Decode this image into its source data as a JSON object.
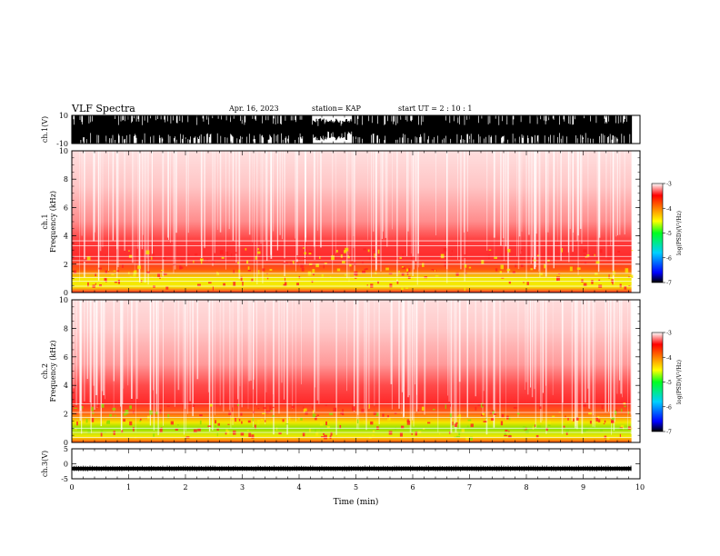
{
  "header": {
    "title": "VLF Spectra",
    "date": "Apr. 16, 2023",
    "station": "station= KAP",
    "start": "start  UT  =   2 : 10 : 1"
  },
  "chart_data": [
    {
      "type": "line",
      "name": "waveform-ch1",
      "ylabel": "ch.1(V)",
      "ylim": [
        -10,
        10
      ],
      "yticks": [
        10,
        -10
      ],
      "xlim": [
        0,
        10
      ],
      "description_level": "noise envelope mostly spanning -10 to 10 V with a quieter interval near 4-5 min"
    },
    {
      "type": "heatmap",
      "name": "spectrogram-ch1",
      "ylabel": "ch.1",
      "ylabel2": "Frequency  (kHz)",
      "ylim": [
        0,
        10
      ],
      "yticks": [
        0,
        2,
        4,
        6,
        8,
        10
      ],
      "xlim": [
        0,
        10
      ],
      "data_end_min": 9.85,
      "colorbar": {
        "label": "log(PSD)(V²/Hz)",
        "range": [
          -7,
          -3
        ],
        "ticks": [
          -3,
          -4,
          -5,
          -6,
          -7
        ]
      }
    },
    {
      "type": "heatmap",
      "name": "spectrogram-ch2",
      "ylabel": "ch.2",
      "ylabel2": "Frequency  (kHz)",
      "ylim": [
        0,
        10
      ],
      "yticks": [
        0,
        2,
        4,
        6,
        8,
        10
      ],
      "xlim": [
        0,
        10
      ],
      "data_end_min": 9.85,
      "colorbar": {
        "label": "log(PSD)(V²/Hz)",
        "range": [
          -7,
          -3
        ],
        "ticks": [
          -3,
          -4,
          -5,
          -6,
          -7
        ]
      }
    },
    {
      "type": "line",
      "name": "waveform-ch3",
      "ylabel": "ch.3(V)",
      "ylim": [
        -5,
        5
      ],
      "yticks": [
        5,
        0,
        -5
      ],
      "xlim": [
        0,
        10
      ],
      "description_level": "narrow band centred near -1.5 V"
    }
  ],
  "xaxis": {
    "label": "Time  (min)",
    "ticks": [
      "0",
      "1",
      "2",
      "3",
      "4",
      "5",
      "6",
      "7",
      "8",
      "9",
      "10"
    ]
  },
  "colors": {
    "background": "#ffffff",
    "ink": "#000000",
    "spec_red": "#ff2a2a",
    "spec_yellow": "#f4e800",
    "spec_green": "#8be000"
  }
}
